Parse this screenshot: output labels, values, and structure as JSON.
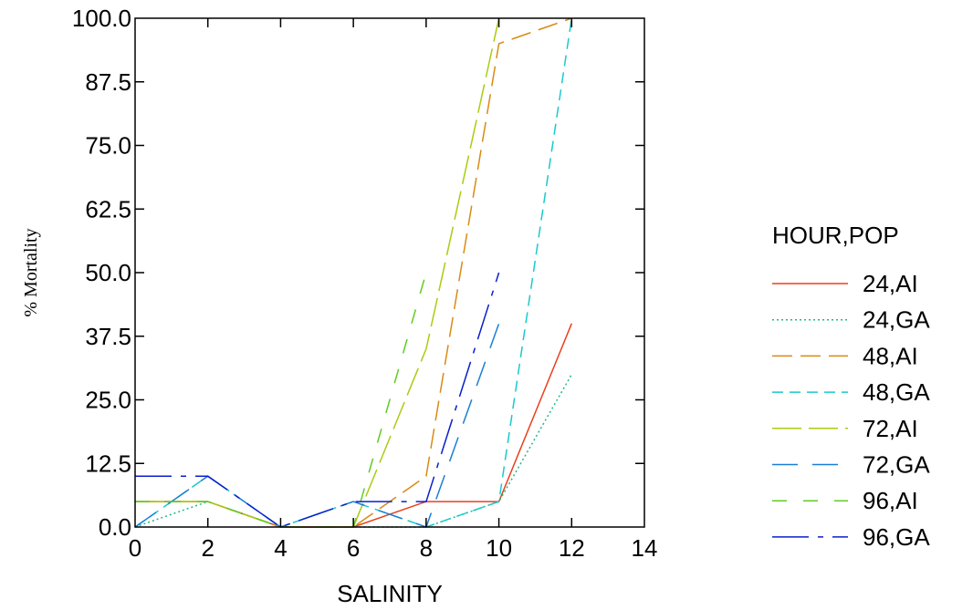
{
  "chart_data": {
    "type": "line",
    "xlabel": "SALINITY",
    "ylabel": "% Mortality",
    "xlim": [
      0,
      14
    ],
    "ylim": [
      0,
      100
    ],
    "xticks": [
      "0",
      "2",
      "4",
      "6",
      "8",
      "10",
      "12",
      "14"
    ],
    "yticks": [
      "0.0",
      "12.5",
      "25.0",
      "37.5",
      "50.0",
      "62.5",
      "75.0",
      "87.5",
      "100.0"
    ],
    "grid": false,
    "legend": {
      "title": "HOUR,POP",
      "position": "right"
    },
    "series": [
      {
        "name": "24,AI",
        "color": "#e8401c",
        "dash": "",
        "points": [
          [
            0,
            5
          ],
          [
            2,
            5
          ],
          [
            4,
            0
          ],
          [
            6,
            0
          ],
          [
            8,
            5
          ],
          [
            10,
            5
          ],
          [
            12,
            40
          ]
        ]
      },
      {
        "name": "24,GA",
        "color": "#1fb88e",
        "dash": "2 3",
        "points": [
          [
            0,
            0
          ],
          [
            2,
            5
          ],
          [
            4,
            0
          ],
          [
            6,
            0
          ],
          [
            8,
            0
          ],
          [
            10,
            5
          ],
          [
            12,
            30
          ]
        ]
      },
      {
        "name": "48,AI",
        "color": "#d98a12",
        "dash": "22 9",
        "points": [
          [
            0,
            5
          ],
          [
            2,
            5
          ],
          [
            4,
            0
          ],
          [
            6,
            0
          ],
          [
            8,
            10
          ],
          [
            10,
            95
          ],
          [
            12,
            100
          ]
        ]
      },
      {
        "name": "48,GA",
        "color": "#19c9cc",
        "dash": "12 7",
        "points": [
          [
            0,
            0
          ],
          [
            2,
            10
          ],
          [
            4,
            0
          ],
          [
            6,
            5
          ],
          [
            8,
            0
          ],
          [
            10,
            5
          ],
          [
            12,
            100
          ]
        ]
      },
      {
        "name": "72,AI",
        "color": "#a9cc10",
        "dash": "32 8",
        "points": [
          [
            0,
            5
          ],
          [
            2,
            5
          ],
          [
            4,
            0
          ],
          [
            6,
            0
          ],
          [
            8,
            35
          ],
          [
            10,
            100
          ]
        ]
      },
      {
        "name": "72,GA",
        "color": "#1a7fd6",
        "dash": "28 16",
        "points": [
          [
            0,
            0
          ],
          [
            2,
            10
          ],
          [
            4,
            0
          ],
          [
            6,
            5
          ],
          [
            8,
            0
          ],
          [
            10,
            40
          ]
        ]
      },
      {
        "name": "96,AI",
        "color": "#5fcc22",
        "dash": "16 18",
        "points": [
          [
            0,
            5
          ],
          [
            2,
            5
          ],
          [
            4,
            0
          ],
          [
            6,
            0
          ],
          [
            8,
            50
          ]
        ]
      },
      {
        "name": "96,GA",
        "color": "#0a1fcc",
        "dash": "40 10 6 10",
        "points": [
          [
            0,
            10
          ],
          [
            2,
            10
          ],
          [
            4,
            0
          ],
          [
            6,
            5
          ],
          [
            8,
            5
          ],
          [
            10,
            50
          ]
        ]
      }
    ]
  }
}
